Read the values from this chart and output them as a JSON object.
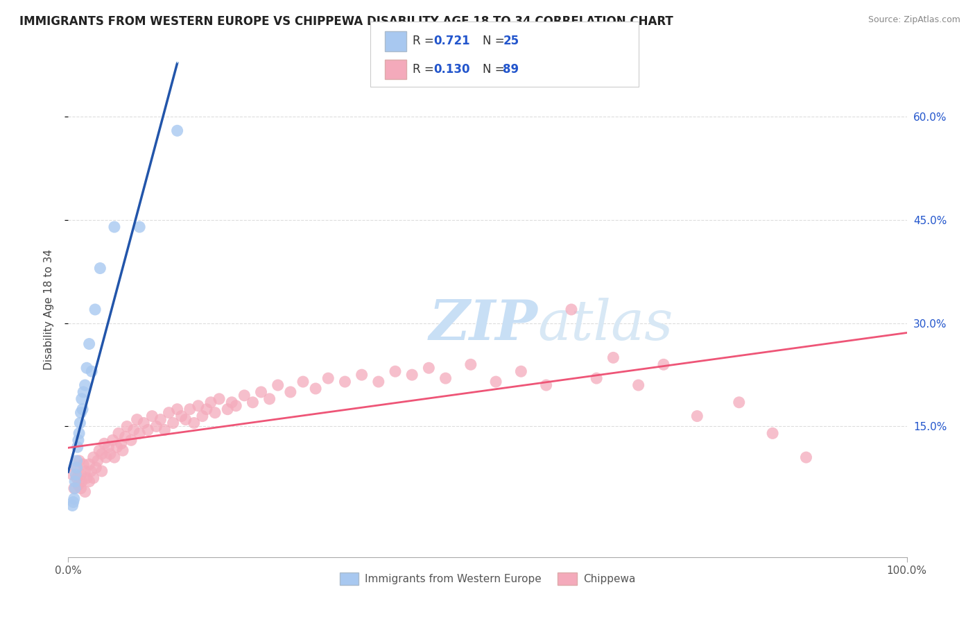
{
  "title": "IMMIGRANTS FROM WESTERN EUROPE VS CHIPPEWA DISABILITY AGE 18 TO 34 CORRELATION CHART",
  "source": "Source: ZipAtlas.com",
  "ylabel": "Disability Age 18 to 34",
  "ylabel_right_ticks": [
    "60.0%",
    "45.0%",
    "30.0%",
    "15.0%"
  ],
  "ylabel_right_vals": [
    0.6,
    0.45,
    0.3,
    0.15
  ],
  "watermark_zip": "ZIP",
  "watermark_atlas": "atlas",
  "legend_label_blue": "Immigrants from Western Europe",
  "legend_label_pink": "Chippewa",
  "blue_color": "#A8C8F0",
  "pink_color": "#F4AABB",
  "blue_line_color": "#2255AA",
  "pink_line_color": "#EE5577",
  "blue_dashed_color": "#AACCEE",
  "title_color": "#222222",
  "r_n_color": "#2255CC",
  "grid_color": "#DDDDDD",
  "blue_scatter_x": [
    0.005,
    0.006,
    0.007,
    0.008,
    0.008,
    0.009,
    0.01,
    0.01,
    0.011,
    0.012,
    0.013,
    0.014,
    0.015,
    0.016,
    0.017,
    0.018,
    0.02,
    0.022,
    0.025,
    0.028,
    0.032,
    0.038,
    0.055,
    0.085,
    0.13
  ],
  "blue_scatter_y": [
    0.035,
    0.04,
    0.045,
    0.06,
    0.07,
    0.08,
    0.09,
    0.1,
    0.12,
    0.13,
    0.14,
    0.155,
    0.17,
    0.19,
    0.175,
    0.2,
    0.21,
    0.235,
    0.27,
    0.23,
    0.32,
    0.38,
    0.44,
    0.44,
    0.58
  ],
  "pink_scatter_x": [
    0.005,
    0.007,
    0.01,
    0.01,
    0.012,
    0.013,
    0.015,
    0.015,
    0.016,
    0.018,
    0.02,
    0.02,
    0.022,
    0.025,
    0.025,
    0.027,
    0.03,
    0.03,
    0.033,
    0.035,
    0.037,
    0.04,
    0.04,
    0.043,
    0.045,
    0.048,
    0.05,
    0.053,
    0.055,
    0.058,
    0.06,
    0.063,
    0.065,
    0.068,
    0.07,
    0.075,
    0.078,
    0.082,
    0.085,
    0.09,
    0.095,
    0.1,
    0.105,
    0.11,
    0.115,
    0.12,
    0.125,
    0.13,
    0.135,
    0.14,
    0.145,
    0.15,
    0.155,
    0.16,
    0.165,
    0.17,
    0.175,
    0.18,
    0.19,
    0.195,
    0.2,
    0.21,
    0.22,
    0.23,
    0.24,
    0.25,
    0.265,
    0.28,
    0.295,
    0.31,
    0.33,
    0.35,
    0.37,
    0.39,
    0.41,
    0.43,
    0.45,
    0.48,
    0.51,
    0.54,
    0.57,
    0.6,
    0.63,
    0.65,
    0.68,
    0.71,
    0.75,
    0.8,
    0.84,
    0.88
  ],
  "pink_scatter_y": [
    0.08,
    0.06,
    0.075,
    0.09,
    0.065,
    0.1,
    0.06,
    0.08,
    0.07,
    0.095,
    0.055,
    0.085,
    0.075,
    0.07,
    0.095,
    0.085,
    0.075,
    0.105,
    0.09,
    0.1,
    0.115,
    0.085,
    0.11,
    0.125,
    0.105,
    0.12,
    0.11,
    0.13,
    0.105,
    0.12,
    0.14,
    0.125,
    0.115,
    0.135,
    0.15,
    0.13,
    0.145,
    0.16,
    0.14,
    0.155,
    0.145,
    0.165,
    0.15,
    0.16,
    0.145,
    0.17,
    0.155,
    0.175,
    0.165,
    0.16,
    0.175,
    0.155,
    0.18,
    0.165,
    0.175,
    0.185,
    0.17,
    0.19,
    0.175,
    0.185,
    0.18,
    0.195,
    0.185,
    0.2,
    0.19,
    0.21,
    0.2,
    0.215,
    0.205,
    0.22,
    0.215,
    0.225,
    0.215,
    0.23,
    0.225,
    0.235,
    0.22,
    0.24,
    0.215,
    0.23,
    0.21,
    0.32,
    0.22,
    0.25,
    0.21,
    0.24,
    0.165,
    0.185,
    0.14,
    0.105
  ],
  "xlim": [
    0.0,
    1.0
  ],
  "ylim": [
    -0.04,
    0.68
  ],
  "title_fontsize": 12,
  "tick_fontsize": 11
}
